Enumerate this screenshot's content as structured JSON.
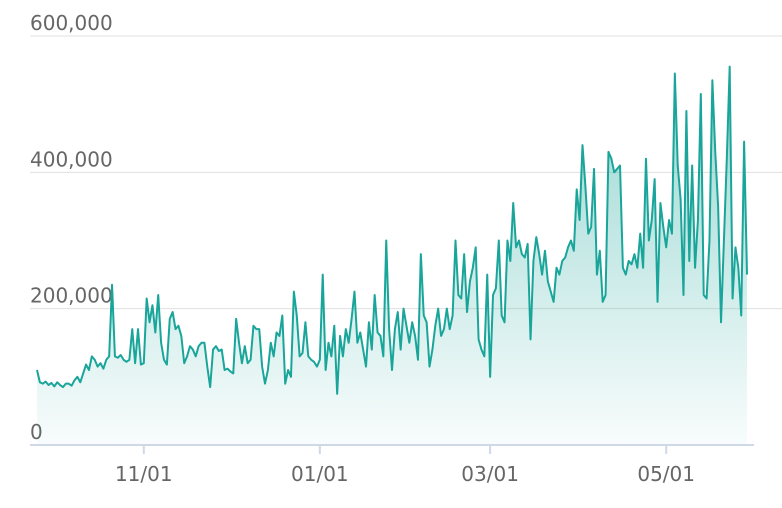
{
  "chart_data": {
    "type": "area",
    "categories": [
      null,
      null,
      null,
      null,
      null,
      null,
      null,
      null,
      null,
      null,
      null,
      null,
      null,
      null,
      null,
      null,
      null,
      null,
      null,
      null,
      null,
      null,
      null,
      null,
      null,
      null,
      null,
      null,
      null,
      null,
      null,
      null,
      null,
      null,
      null,
      null,
      null,
      "11/01",
      null,
      null,
      null,
      null,
      null,
      null,
      null,
      null,
      null,
      null,
      null,
      null,
      null,
      null,
      null,
      null,
      null,
      null,
      null,
      null,
      null,
      null,
      null,
      null,
      null,
      null,
      null,
      null,
      null,
      null,
      null,
      null,
      null,
      null,
      null,
      null,
      null,
      null,
      null,
      null,
      null,
      null,
      null,
      null,
      null,
      null,
      null,
      null,
      null,
      null,
      null,
      null,
      null,
      null,
      null,
      null,
      null,
      null,
      null,
      null,
      "01/01",
      null,
      null,
      null,
      null,
      null,
      null,
      null,
      null,
      null,
      null,
      null,
      null,
      null,
      null,
      null,
      null,
      null,
      null,
      null,
      null,
      null,
      null,
      null,
      null,
      null,
      null,
      null,
      null,
      null,
      null,
      null,
      null,
      null,
      null,
      null,
      null,
      null,
      null,
      null,
      null,
      null,
      null,
      null,
      null,
      null,
      null,
      null,
      null,
      null,
      null,
      null,
      null,
      null,
      null,
      null,
      null,
      null,
      null,
      "03/01",
      null,
      null,
      null,
      null,
      null,
      null,
      null,
      null,
      null,
      null,
      null,
      null,
      null,
      null,
      null,
      null,
      null,
      null,
      null,
      null,
      null,
      null,
      null,
      null,
      null,
      null,
      null,
      null,
      null,
      null,
      null,
      null,
      null,
      null,
      null,
      null,
      null,
      null,
      null,
      null,
      null,
      null,
      null,
      null,
      null,
      null,
      null,
      null,
      null,
      null,
      null,
      null,
      null,
      null,
      null,
      null,
      null,
      null,
      null,
      null,
      "05/01",
      null,
      null,
      null,
      null,
      null,
      null,
      null,
      null,
      null,
      null,
      null,
      null,
      null,
      null,
      null,
      null,
      null,
      null,
      null,
      null,
      null,
      null,
      null,
      null,
      null,
      null,
      null,
      null
    ],
    "values": [
      110000,
      92000,
      90000,
      93000,
      88000,
      91000,
      86000,
      92000,
      88000,
      85000,
      90000,
      90000,
      87000,
      95000,
      100000,
      92000,
      105000,
      118000,
      110000,
      130000,
      125000,
      115000,
      120000,
      112000,
      125000,
      130000,
      235000,
      130000,
      128000,
      132000,
      125000,
      122000,
      125000,
      170000,
      120000,
      170000,
      118000,
      120000,
      215000,
      180000,
      205000,
      165000,
      220000,
      150000,
      125000,
      118000,
      185000,
      195000,
      170000,
      175000,
      160000,
      120000,
      130000,
      145000,
      140000,
      130000,
      145000,
      150000,
      150000,
      115000,
      85000,
      140000,
      145000,
      138000,
      140000,
      110000,
      112000,
      108000,
      105000,
      185000,
      150000,
      120000,
      145000,
      120000,
      125000,
      175000,
      170000,
      170000,
      115000,
      90000,
      110000,
      150000,
      130000,
      165000,
      160000,
      190000,
      90000,
      110000,
      100000,
      225000,
      190000,
      130000,
      135000,
      180000,
      130000,
      125000,
      122000,
      115000,
      125000,
      250000,
      110000,
      150000,
      130000,
      175000,
      75000,
      160000,
      130000,
      170000,
      150000,
      185000,
      225000,
      150000,
      165000,
      140000,
      115000,
      180000,
      140000,
      220000,
      165000,
      160000,
      130000,
      300000,
      170000,
      110000,
      170000,
      195000,
      140000,
      200000,
      175000,
      150000,
      180000,
      160000,
      125000,
      280000,
      190000,
      180000,
      115000,
      140000,
      175000,
      200000,
      160000,
      170000,
      200000,
      170000,
      190000,
      300000,
      220000,
      215000,
      280000,
      195000,
      240000,
      260000,
      290000,
      155000,
      140000,
      130000,
      250000,
      100000,
      220000,
      230000,
      300000,
      190000,
      180000,
      300000,
      270000,
      355000,
      290000,
      300000,
      280000,
      275000,
      295000,
      155000,
      270000,
      305000,
      280000,
      250000,
      285000,
      240000,
      225000,
      210000,
      260000,
      250000,
      270000,
      275000,
      290000,
      300000,
      285000,
      375000,
      330000,
      440000,
      380000,
      310000,
      320000,
      405000,
      250000,
      285000,
      210000,
      220000,
      430000,
      420000,
      400000,
      405000,
      410000,
      260000,
      250000,
      270000,
      265000,
      280000,
      260000,
      310000,
      260000,
      420000,
      300000,
      330000,
      390000,
      210000,
      355000,
      320000,
      290000,
      330000,
      310000,
      545000,
      410000,
      360000,
      220000,
      490000,
      270000,
      410000,
      260000,
      330000,
      515000,
      220000,
      215000,
      300000,
      535000,
      430000,
      350000,
      180000,
      300000,
      420000,
      555000,
      215000,
      290000,
      260000,
      190000,
      445000,
      250000
    ],
    "color": "#1aa59a",
    "ylim": [
      0,
      600000
    ],
    "yticks": [
      0,
      {
        "value": 200000,
        "label": "200,000"
      },
      {
        "value": 400000,
        "label": "400,000"
      },
      {
        "value": 600000,
        "label": "600,000"
      }
    ],
    "grid": true
  }
}
